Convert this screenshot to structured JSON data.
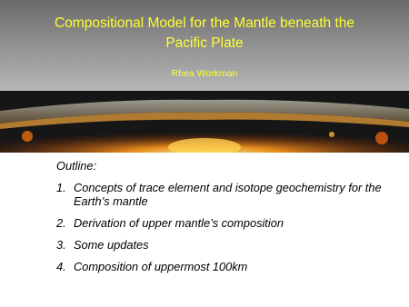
{
  "slide": {
    "title": "Compositional Model for the Mantle beneath the Pacific Plate",
    "author": "Rhea Workman",
    "outline": {
      "heading": "Outline:",
      "items": [
        {
          "number": "1.",
          "text": "Concepts of trace element and isotope geochemistry for the Earth’s mantle"
        },
        {
          "number": "2.",
          "text": "Derivation of upper mantle’s composition"
        },
        {
          "number": "3.",
          "text": "Some updates"
        },
        {
          "number": "4.",
          "text": "Composition of uppermost 100km"
        }
      ]
    }
  }
}
